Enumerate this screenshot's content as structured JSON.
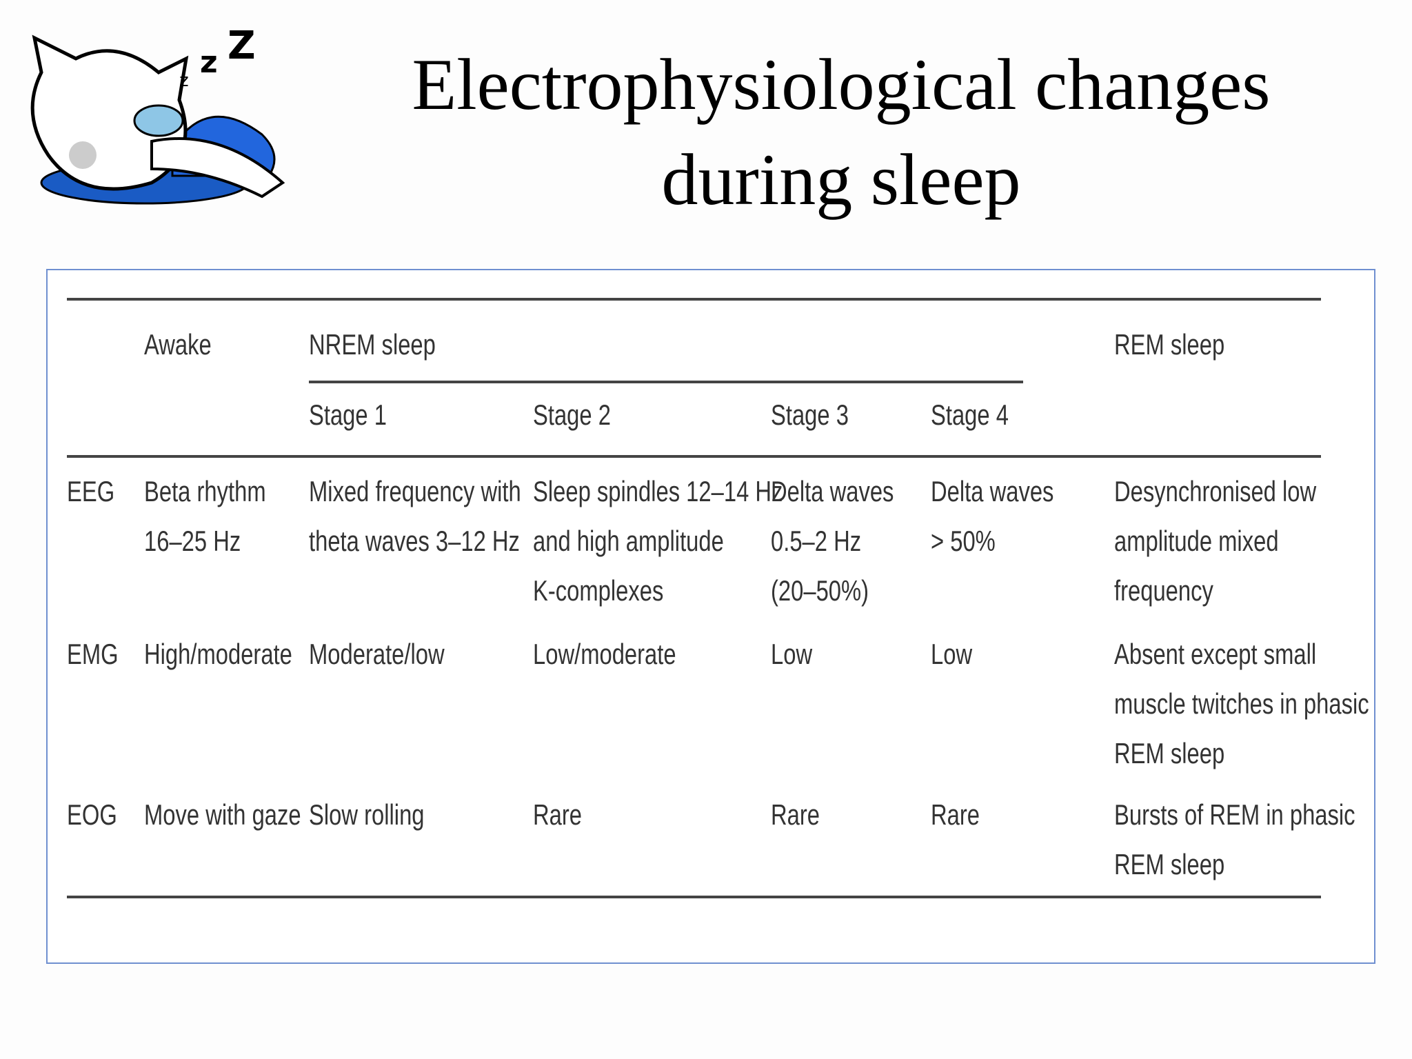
{
  "title_lines": [
    "Electrophysiological changes",
    "during sleep"
  ],
  "table": {
    "header": {
      "awake": "Awake",
      "nrem": "NREM sleep",
      "rem": "REM sleep",
      "stages": [
        "Stage 1",
        "Stage 2",
        "Stage 3",
        "Stage 4"
      ]
    },
    "rows": [
      {
        "label": "EEG",
        "cells": [
          [
            "Beta rhythm",
            "16–25 Hz"
          ],
          [
            "Mixed frequency with",
            "theta waves 3–12 Hz"
          ],
          [
            "Sleep spindles 12–14 Hz",
            "and high amplitude",
            "K-complexes"
          ],
          [
            "Delta waves",
            "0.5–2 Hz",
            "(20–50%)"
          ],
          [
            "Delta waves",
            "> 50%"
          ],
          [
            "Desynchronised low",
            "amplitude mixed",
            "frequency"
          ]
        ]
      },
      {
        "label": "EMG",
        "cells": [
          [
            "High/moderate"
          ],
          [
            "Moderate/low"
          ],
          [
            "Low/moderate"
          ],
          [
            "Low"
          ],
          [
            "Low"
          ],
          [
            "Absent except small",
            "muscle twitches in phasic",
            "REM sleep"
          ]
        ]
      },
      {
        "label": "EOG",
        "cells": [
          [
            "Move with gaze"
          ],
          [
            "Slow rolling"
          ],
          [
            "Rare"
          ],
          [
            "Rare"
          ],
          [
            "Rare"
          ],
          [
            "Bursts of REM in phasic",
            "REM sleep"
          ]
        ]
      }
    ]
  }
}
